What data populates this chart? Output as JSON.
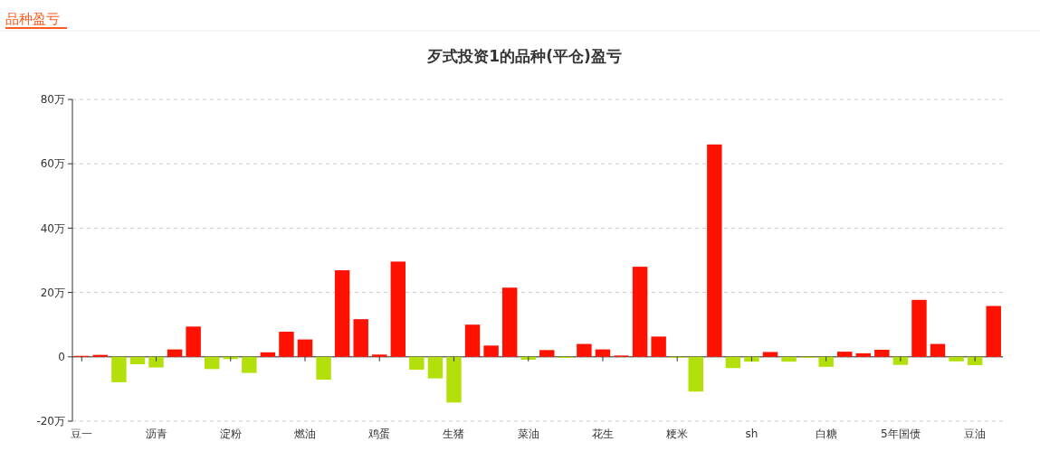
{
  "chart_data": {
    "type": "bar",
    "title": "歹式投资1的品种(平仓)盈亏",
    "annotations": [
      "品种盈亏"
    ],
    "categories": [
      "豆一",
      null,
      null,
      null,
      "沥青",
      null,
      null,
      null,
      "淀粉",
      null,
      null,
      null,
      "燃油",
      null,
      null,
      null,
      "鸡蛋",
      null,
      null,
      null,
      "生猪",
      null,
      null,
      null,
      "菜油",
      null,
      null,
      null,
      "花生",
      null,
      null,
      null,
      "粳米",
      null,
      null,
      null,
      "sh",
      null,
      null,
      null,
      "白糖",
      null,
      null,
      null,
      "5年国债",
      null,
      null,
      null,
      "豆油",
      null
    ],
    "values": [
      0.3,
      0.6,
      -7.9,
      -2.3,
      -3.3,
      2.3,
      9.4,
      -3.8,
      -0.7,
      -5.0,
      1.4,
      7.8,
      5.4,
      -7.1,
      26.9,
      11.7,
      0.7,
      29.6,
      -4.0,
      -6.7,
      -14.2,
      10.0,
      3.5,
      21.5,
      -0.9,
      2.1,
      -0.3,
      4.0,
      2.3,
      0.4,
      28.0,
      6.3,
      -0.3,
      -10.8,
      66.0,
      -3.5,
      -1.5,
      1.5,
      -1.5,
      -0.3,
      -3.1,
      1.6,
      1.1,
      2.2,
      -2.5,
      17.7,
      4.0,
      -1.4,
      -2.6,
      15.8
    ],
    "colors": [
      "#ff1100",
      "#ff1100",
      "#b3e00a",
      "#b3e00a",
      "#b3e00a",
      "#ff1100",
      "#ff1100",
      "#b3e00a",
      "#b3e00a",
      "#b3e00a",
      "#ff1100",
      "#ff1100",
      "#ff1100",
      "#b3e00a",
      "#ff1100",
      "#ff1100",
      "#ff1100",
      "#ff1100",
      "#b3e00a",
      "#b3e00a",
      "#b3e00a",
      "#ff1100",
      "#ff1100",
      "#ff1100",
      "#b3e00a",
      "#ff1100",
      "#b3e00a",
      "#ff1100",
      "#ff1100",
      "#ff1100",
      "#ff1100",
      "#ff1100",
      "#b3e00a",
      "#b3e00a",
      "#ff1100",
      "#b3e00a",
      "#b3e00a",
      "#ff1100",
      "#b3e00a",
      "#b3e00a",
      "#b3e00a",
      "#ff1100",
      "#ff1100",
      "#ff1100",
      "#b3e00a",
      "#ff1100",
      "#ff1100",
      "#b3e00a",
      "#b3e00a",
      "#ff1100"
    ],
    "ylim": [
      -20,
      80
    ],
    "yticks": [
      {
        "value": -20,
        "label": "-20万"
      },
      0,
      {
        "value": 20,
        "label": "20万"
      },
      {
        "value": 40,
        "label": "40万"
      },
      {
        "value": 60,
        "label": "60万"
      },
      {
        "value": 80,
        "label": "80万"
      }
    ],
    "grid": "y"
  }
}
